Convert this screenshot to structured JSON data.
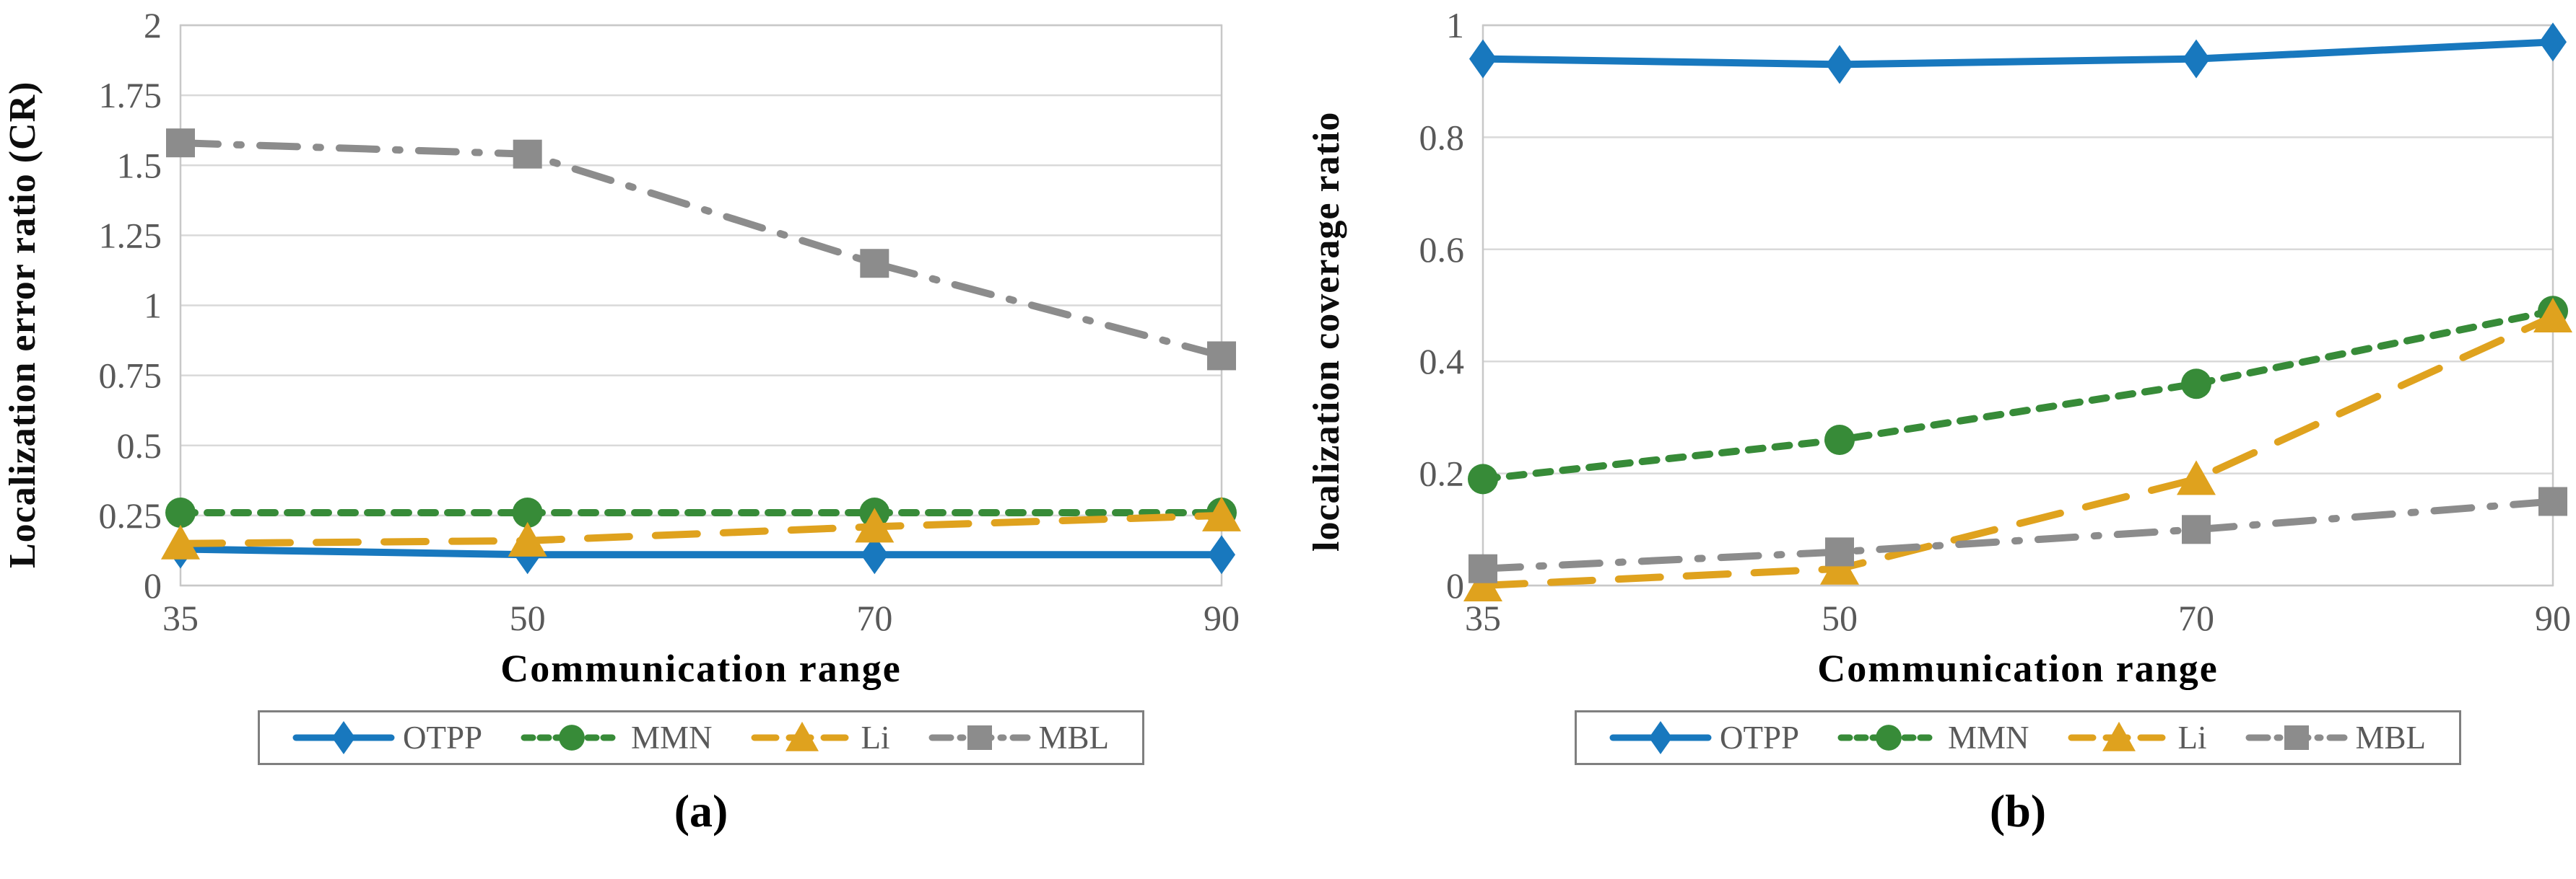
{
  "figure": {
    "xtick_labels": [
      "35",
      "50",
      "70",
      "90"
    ],
    "colors": {
      "otpp": "#1878BE",
      "mmn": "#378B38",
      "li": "#DFA21E",
      "mbl": "#8C8C8C",
      "gridline": "#D9D9D9",
      "plot_border": "#C8C8C8",
      "tick_text": "#595959",
      "legend_border": "#7F7F7F",
      "title_text": "#000000"
    }
  },
  "chart_data": [
    {
      "id": "a",
      "type": "line",
      "title": "",
      "caption": "(a)",
      "xlabel": "Communication range",
      "ylabel": "Localization error ratio (CR)",
      "categories": [
        35,
        50,
        70,
        90
      ],
      "ylim": [
        0,
        2
      ],
      "yticks": [
        0,
        0.25,
        0.5,
        0.75,
        1,
        1.25,
        1.5,
        1.75,
        2
      ],
      "ytick_labels": [
        "0",
        "0.25",
        "0.5",
        "0.75",
        "1",
        "1.25",
        "1.5",
        "1.75",
        "2"
      ],
      "grid": true,
      "legend_position": "bottom",
      "series": [
        {
          "name": "OTPP",
          "color_key": "otpp",
          "marker": "diamond",
          "dash": "solid",
          "values": [
            0.13,
            0.11,
            0.11,
            0.11
          ]
        },
        {
          "name": "MMN",
          "color_key": "mmn",
          "marker": "circle",
          "dash": "dotted",
          "values": [
            0.26,
            0.26,
            0.26,
            0.26
          ]
        },
        {
          "name": "Li",
          "color_key": "li",
          "marker": "triangle",
          "dash": "dashed",
          "values": [
            0.15,
            0.16,
            0.21,
            0.25
          ]
        },
        {
          "name": "MBL",
          "color_key": "mbl",
          "marker": "square",
          "dash": "dashdot",
          "values": [
            1.58,
            1.54,
            1.15,
            0.82
          ]
        }
      ]
    },
    {
      "id": "b",
      "type": "line",
      "title": "",
      "caption": "(b)",
      "xlabel": "Communication range",
      "ylabel": "localization coverage ratio",
      "categories": [
        35,
        50,
        70,
        90
      ],
      "ylim": [
        0,
        1
      ],
      "yticks": [
        0,
        0.2,
        0.4,
        0.6,
        0.8,
        1
      ],
      "ytick_labels": [
        "0",
        "0.2",
        "0.4",
        "0.6",
        "0.8",
        "1"
      ],
      "grid": true,
      "legend_position": "bottom",
      "series": [
        {
          "name": "OTPP",
          "color_key": "otpp",
          "marker": "diamond",
          "dash": "solid",
          "values": [
            0.94,
            0.93,
            0.94,
            0.97
          ]
        },
        {
          "name": "MMN",
          "color_key": "mmn",
          "marker": "circle",
          "dash": "dotted",
          "values": [
            0.19,
            0.26,
            0.36,
            0.49
          ]
        },
        {
          "name": "Li",
          "color_key": "li",
          "marker": "triangle",
          "dash": "dashed",
          "values": [
            0.0,
            0.03,
            0.19,
            0.48
          ]
        },
        {
          "name": "MBL",
          "color_key": "mbl",
          "marker": "square",
          "dash": "dashdot",
          "values": [
            0.03,
            0.06,
            0.1,
            0.15
          ]
        }
      ]
    }
  ]
}
